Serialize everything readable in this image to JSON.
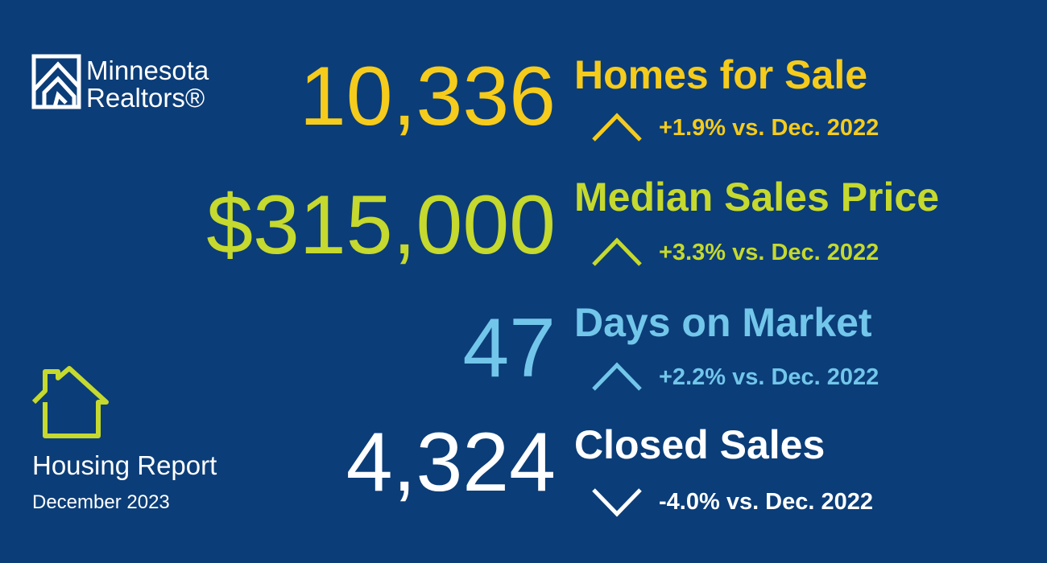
{
  "logo": {
    "line1": "Minnesota",
    "line2": "Realtors®"
  },
  "report": {
    "title": "Housing Report",
    "period": "December 2023"
  },
  "metrics": [
    {
      "value": "10,336",
      "label": "Homes for Sale",
      "change": "+1.9% vs. Dec. 2022",
      "arrow": "up",
      "color": "#f5cb1c"
    },
    {
      "value": "$315,000",
      "label": "Median Sales Price",
      "change": "+3.3% vs. Dec. 2022",
      "arrow": "up",
      "color": "#c5d92e"
    },
    {
      "value": "47",
      "label": "Days on Market",
      "change": "+2.2% vs. Dec. 2022",
      "arrow": "up",
      "color": "#72c6ea"
    },
    {
      "value": "4,324",
      "label": "Closed Sales",
      "change": "-4.0% vs. Dec. 2022",
      "arrow": "down",
      "color": "#ffffff"
    }
  ]
}
